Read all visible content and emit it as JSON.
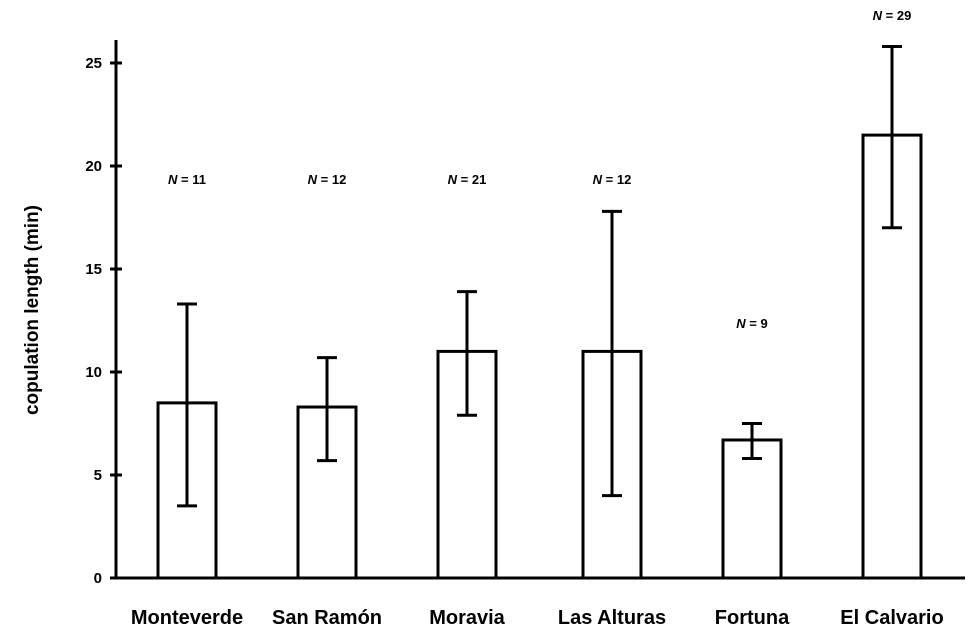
{
  "chart_data": {
    "type": "bar",
    "title": "",
    "xlabel": "",
    "ylabel": "copulation length (min)",
    "ylim": [
      0,
      26
    ],
    "yticks": [
      0,
      5,
      10,
      15,
      20,
      25
    ],
    "grid": false,
    "categories": [
      "Monteverde",
      "San Ramón",
      "Moravia",
      "Las Alturas",
      "Fortuna",
      "El Calvario"
    ],
    "values": [
      8.5,
      8.3,
      11.0,
      11.0,
      6.7,
      21.5
    ],
    "error_low": [
      3.5,
      5.7,
      7.9,
      4.0,
      5.8,
      17.0
    ],
    "error_high": [
      13.3,
      10.7,
      13.9,
      17.8,
      7.5,
      25.8
    ],
    "sample_sizes": [
      "N = 11",
      "N = 12",
      "N = 21",
      "N = 12",
      "N = 9",
      "N = 29"
    ],
    "colors": {
      "bar_fill": "#ffffff",
      "stroke": "#000000"
    }
  }
}
